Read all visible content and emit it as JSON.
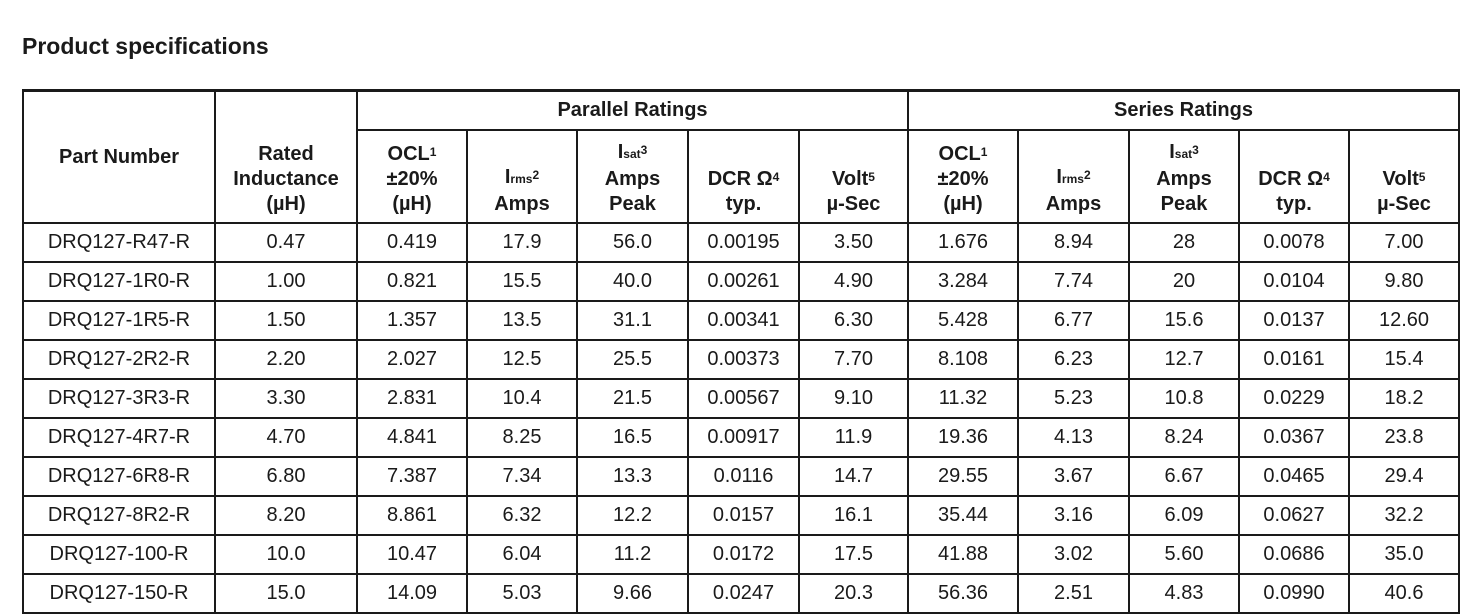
{
  "title": "Product specifications",
  "groups": {
    "parallel": "Parallel Ratings",
    "series": "Series Ratings"
  },
  "headers": {
    "part_number": "Part Number",
    "rated": [
      "Rated",
      "Inductance",
      "(µH)"
    ],
    "ocl": [
      "OCL",
      "±20%",
      "(µH)"
    ],
    "ocl_note": "1",
    "irms_letter": "I",
    "irms_sub": "rms",
    "irms_note": "2",
    "irms_unit": "Amps",
    "isat_letter": "I",
    "isat_sub": "sat",
    "isat_note": "3",
    "isat_unit": [
      "Amps",
      "Peak"
    ],
    "dcr": [
      "DCR Ω",
      "typ."
    ],
    "dcr_note": "4",
    "volt": [
      "Volt",
      "µ-Sec"
    ],
    "volt_note": "5"
  },
  "rows": [
    [
      "DRQ127-R47-R",
      "0.47",
      "0.419",
      "17.9",
      "56.0",
      "0.00195",
      "3.50",
      "1.676",
      "8.94",
      "28",
      "0.0078",
      "7.00"
    ],
    [
      "DRQ127-1R0-R",
      "1.00",
      "0.821",
      "15.5",
      "40.0",
      "0.00261",
      "4.90",
      "3.284",
      "7.74",
      "20",
      "0.0104",
      "9.80"
    ],
    [
      "DRQ127-1R5-R",
      "1.50",
      "1.357",
      "13.5",
      "31.1",
      "0.00341",
      "6.30",
      "5.428",
      "6.77",
      "15.6",
      "0.0137",
      "12.60"
    ],
    [
      "DRQ127-2R2-R",
      "2.20",
      "2.027",
      "12.5",
      "25.5",
      "0.00373",
      "7.70",
      "8.108",
      "6.23",
      "12.7",
      "0.0161",
      "15.4"
    ],
    [
      "DRQ127-3R3-R",
      "3.30",
      "2.831",
      "10.4",
      "21.5",
      "0.00567",
      "9.10",
      "11.32",
      "5.23",
      "10.8",
      "0.0229",
      "18.2"
    ],
    [
      "DRQ127-4R7-R",
      "4.70",
      "4.841",
      "8.25",
      "16.5",
      "0.00917",
      "11.9",
      "19.36",
      "4.13",
      "8.24",
      "0.0367",
      "23.8"
    ],
    [
      "DRQ127-6R8-R",
      "6.80",
      "7.387",
      "7.34",
      "13.3",
      "0.0116",
      "14.7",
      "29.55",
      "3.67",
      "6.67",
      "0.0465",
      "29.4"
    ],
    [
      "DRQ127-8R2-R",
      "8.20",
      "8.861",
      "6.32",
      "12.2",
      "0.0157",
      "16.1",
      "35.44",
      "3.16",
      "6.09",
      "0.0627",
      "32.2"
    ],
    [
      "DRQ127-100-R",
      "10.0",
      "10.47",
      "6.04",
      "11.2",
      "0.0172",
      "17.5",
      "41.88",
      "3.02",
      "5.60",
      "0.0686",
      "35.0"
    ],
    [
      "DRQ127-150-R",
      "15.0",
      "14.09",
      "5.03",
      "9.66",
      "0.0247",
      "20.3",
      "56.36",
      "2.51",
      "4.83",
      "0.0990",
      "40.6"
    ]
  ]
}
